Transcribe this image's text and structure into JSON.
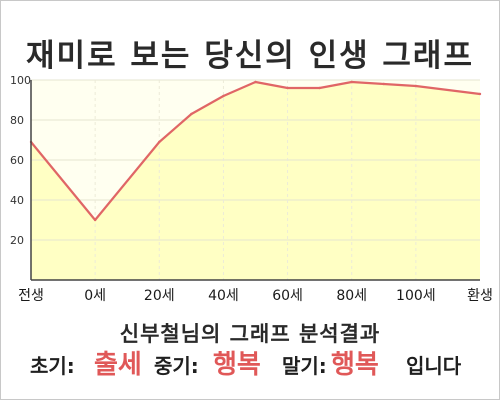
{
  "title": "재미로 보는 당신의 인생 그래프",
  "chart_data": {
    "type": "area",
    "x_categories": [
      "전생",
      "0세",
      "20세",
      "40세",
      "60세",
      "80세",
      "100세",
      "환생"
    ],
    "series": [
      {
        "x": [
          -20,
          0,
          20,
          30,
          40,
          50,
          60,
          70,
          80,
          90,
          100,
          120
        ],
        "y": [
          69,
          30,
          69,
          83,
          92,
          99,
          96,
          96,
          99,
          98,
          97,
          93
        ]
      }
    ],
    "ylim": [
      0,
      100
    ],
    "yticks": [
      20,
      40,
      60,
      80,
      100
    ],
    "line_color": "#e06666",
    "fill_color": "#ffffc4",
    "plot_bg": "#fffff0"
  },
  "analysis": {
    "heading": "신부철님의 그래프 분석결과",
    "early_label": "초기:",
    "early_value": "출세",
    "middle_label": "중기:",
    "middle_value": "행복",
    "late_label": "말기:",
    "late_value": "행복",
    "ending": "입니다"
  }
}
